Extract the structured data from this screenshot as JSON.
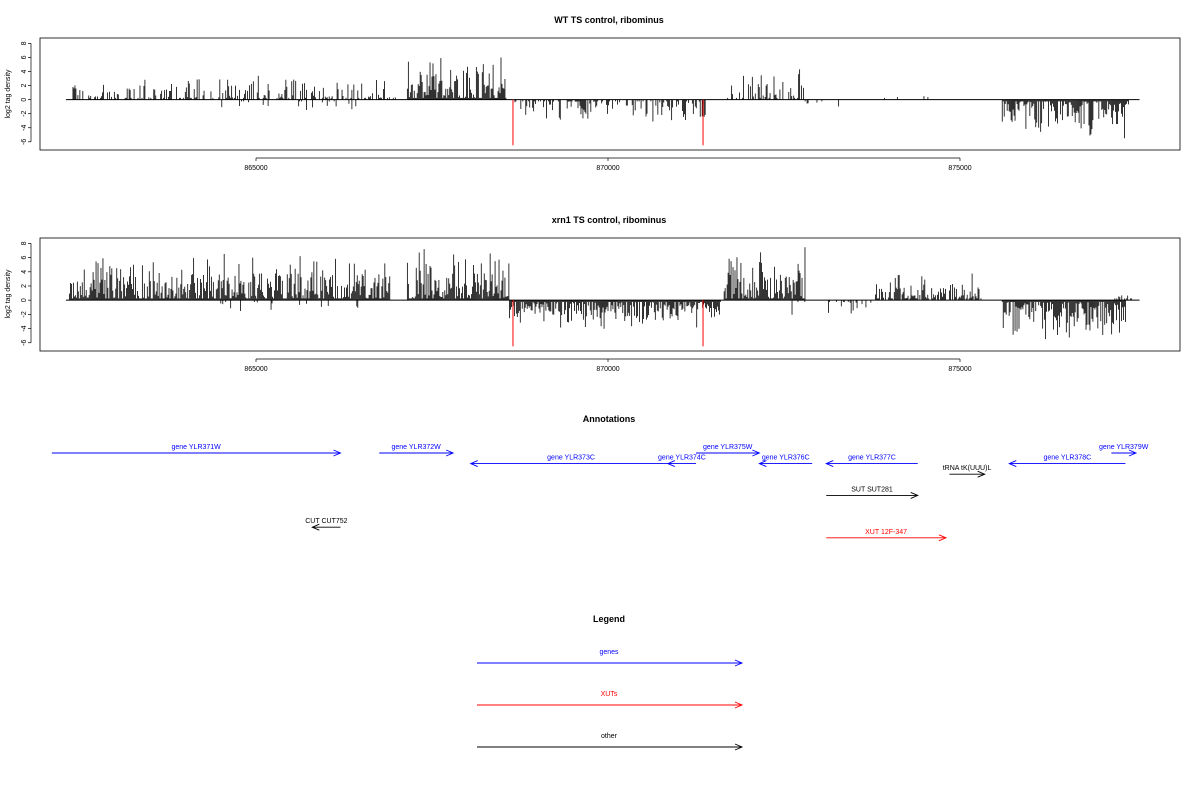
{
  "colors": {
    "gene": "#0000ff",
    "xut": "#ff0000",
    "other": "#000000",
    "axis": "#000000"
  },
  "chart_data": [
    {
      "type": "bar",
      "title": "WT TS control, ribominus",
      "ylabel": "log2 tag density",
      "xlim": [
        862300,
        877600
      ],
      "ylim": [
        -6,
        8
      ],
      "yticks": [
        -6,
        -4,
        -2,
        0,
        2,
        4,
        6,
        8
      ],
      "xticks": [
        865000,
        870000,
        875000
      ],
      "xtick_labels": [
        "865000",
        "870000",
        "875000"
      ],
      "baseline": {
        "start": 862300,
        "end": 877550
      },
      "positive_regions": [
        {
          "start": 862400,
          "end": 867000,
          "density": 0.55,
          "max": 3.8
        },
        {
          "start": 867150,
          "end": 868550,
          "density": 1.0,
          "max": 7.2
        },
        {
          "start": 871700,
          "end": 872800,
          "density": 0.55,
          "max": 4.8
        },
        {
          "start": 873900,
          "end": 874900,
          "density": 0.1,
          "max": 2.0
        }
      ],
      "negative_regions": [
        {
          "start": 864500,
          "end": 866500,
          "density": 0.12,
          "max": 1.8
        },
        {
          "start": 868650,
          "end": 871400,
          "density": 0.55,
          "max": 3.6
        },
        {
          "start": 872800,
          "end": 873500,
          "density": 0.12,
          "max": 1.5
        },
        {
          "start": 875600,
          "end": 877400,
          "density": 1.0,
          "max": 6.0
        }
      ],
      "highlights": [
        {
          "x": 868650,
          "y": -6.5
        },
        {
          "x": 871350,
          "y": -6.5
        }
      ]
    },
    {
      "type": "bar",
      "title": "xrn1 TS control, ribominus",
      "ylabel": "log2 tag density",
      "xlim": [
        862300,
        877600
      ],
      "ylim": [
        -6,
        8
      ],
      "yticks": [
        -6,
        -4,
        -2,
        0,
        2,
        4,
        6,
        8
      ],
      "xticks": [
        865000,
        870000,
        875000
      ],
      "xtick_labels": [
        "865000",
        "870000",
        "875000"
      ],
      "baseline": {
        "start": 862300,
        "end": 877550
      },
      "positive_regions": [
        {
          "start": 862350,
          "end": 866900,
          "density": 1.0,
          "max": 7.0
        },
        {
          "start": 867150,
          "end": 868600,
          "density": 1.0,
          "max": 8.0
        },
        {
          "start": 871650,
          "end": 872800,
          "density": 1.0,
          "max": 8.0
        },
        {
          "start": 873800,
          "end": 875300,
          "density": 0.8,
          "max": 4.5
        },
        {
          "start": 877200,
          "end": 877450,
          "density": 0.3,
          "max": 1.0
        }
      ],
      "negative_regions": [
        {
          "start": 864500,
          "end": 866500,
          "density": 0.1,
          "max": 2.2
        },
        {
          "start": 868600,
          "end": 871600,
          "density": 1.0,
          "max": 4.5
        },
        {
          "start": 872600,
          "end": 873800,
          "density": 0.2,
          "max": 2.5
        },
        {
          "start": 875600,
          "end": 877350,
          "density": 1.0,
          "max": 6.0
        }
      ],
      "highlights": [
        {
          "x": 868650,
          "y": -6.5
        },
        {
          "x": 871350,
          "y": -6.5
        }
      ]
    },
    {
      "type": "table",
      "title": "Annotations",
      "xlim": [
        862300,
        877600
      ],
      "features": [
        {
          "label": "gene YLR371W",
          "start": 862100,
          "end": 866200,
          "strand": "+",
          "row": 0,
          "kind": "gene"
        },
        {
          "label": "gene YLR372W",
          "start": 866750,
          "end": 867800,
          "strand": "+",
          "row": 0,
          "kind": "gene"
        },
        {
          "label": "gene YLR373C",
          "start": 868050,
          "end": 870900,
          "strand": "-",
          "row": 1,
          "kind": "gene"
        },
        {
          "label": "gene YLR374C",
          "start": 870850,
          "end": 871250,
          "strand": "-",
          "row": 1,
          "kind": "gene"
        },
        {
          "label": "gene YLR375W",
          "start": 871250,
          "end": 872150,
          "strand": "+",
          "row": 0,
          "kind": "gene"
        },
        {
          "label": "gene YLR376C",
          "start": 872150,
          "end": 872900,
          "strand": "-",
          "row": 1,
          "kind": "gene"
        },
        {
          "label": "gene YLR377C",
          "start": 873100,
          "end": 874400,
          "strand": "-",
          "row": 1,
          "kind": "gene"
        },
        {
          "label": "gene YLR378C",
          "start": 875700,
          "end": 877350,
          "strand": "-",
          "row": 1,
          "kind": "gene"
        },
        {
          "label": "gene YLR379W",
          "start": 877150,
          "end": 877500,
          "strand": "+",
          "row": 0,
          "kind": "gene"
        },
        {
          "label": "tRNA tK(UUU)L",
          "start": 874850,
          "end": 875350,
          "strand": "+",
          "row": 2,
          "kind": "other"
        },
        {
          "label": "SUT SUT281",
          "start": 873100,
          "end": 874400,
          "strand": "+",
          "row": 4,
          "kind": "other"
        },
        {
          "label": "CUT CUT752",
          "start": 865800,
          "end": 866200,
          "strand": "-",
          "row": 7,
          "kind": "other"
        },
        {
          "label": "XUT 12F-347",
          "start": 873100,
          "end": 874800,
          "strand": "+",
          "row": 8,
          "kind": "xut"
        }
      ]
    },
    {
      "type": "table",
      "title": "Legend",
      "entries": [
        {
          "label": "genes",
          "kind": "gene"
        },
        {
          "label": "XUTs",
          "kind": "xut"
        },
        {
          "label": "other",
          "kind": "other"
        }
      ]
    }
  ]
}
